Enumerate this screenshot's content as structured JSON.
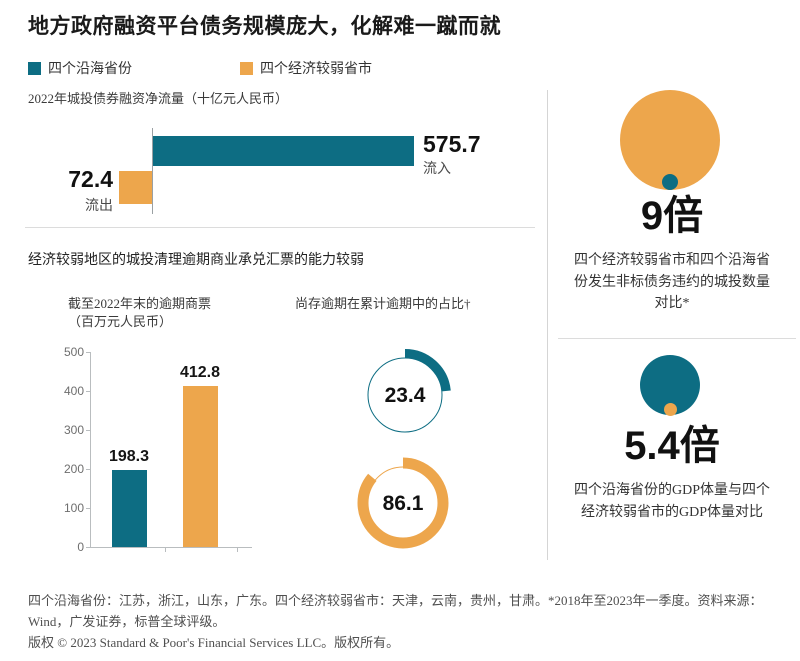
{
  "title": "地方政府融资平台债务规模庞大，化解难一蹴而就",
  "colors": {
    "teal": "#0d6d83",
    "orange": "#eda64c"
  },
  "legend": {
    "items": [
      {
        "label": "四个沿海省份",
        "color": "#0d6d83"
      },
      {
        "label": "四个经济较弱省市",
        "color": "#eda64c"
      }
    ]
  },
  "net_flow_chart": {
    "title": "2022年城投债券融资净流量（十亿元人民币）",
    "inflow": {
      "value": 575.7,
      "value_label": "575.7",
      "label": "流入"
    },
    "outflow": {
      "value": 72.4,
      "value_label": "72.4",
      "label": "流出"
    }
  },
  "section2": {
    "header": "经济较弱地区的城投清理逾期商业承兑汇票的能力较弱",
    "bar_chart": {
      "title_line1": "截至2022年末的逾期商票",
      "title_line2": "（百万元人民币）",
      "y_ticks": [
        "500",
        "400",
        "300",
        "200",
        "100",
        "0"
      ],
      "bars": [
        {
          "name": "四个沿海省份",
          "value": 198.3,
          "label": "198.3",
          "color": "#0d6d83"
        },
        {
          "name": "四个经济较弱省市",
          "value": 412.8,
          "label": "412.8",
          "color": "#eda64c"
        }
      ]
    },
    "donut_chart": {
      "title": "尚存逾期在累计逾期中的占比†",
      "donuts": [
        {
          "name": "四个沿海省份",
          "value": 23.4,
          "label": "23.4",
          "color": "#0d6d83"
        },
        {
          "name": "四个经济较弱省市",
          "value": 86.1,
          "label": "86.1",
          "color": "#eda64c"
        }
      ]
    }
  },
  "right_panels": [
    {
      "figure": "9倍",
      "caption": "四个经济较弱省市和四个沿海省份发生非标债务违约的城投数量对比*"
    },
    {
      "figure": "5.4倍",
      "caption": "四个沿海省份的GDP体量与四个经济较弱省市的GDP体量对比"
    }
  ],
  "footnotes": {
    "sources": "四个沿海省份：江苏，浙江，山东，广东。四个经济较弱省市：天津，云南，贵州，甘肃。*2018年至2023年一季度。资料来源：Wind，广发证券，标普全球评级。",
    "copyright": "版权 © 2023 Standard & Poor's Financial Services LLC。版权所有。"
  },
  "chart_data": [
    {
      "type": "bar",
      "orientation": "horizontal",
      "title": "2022年城投债券融资净流量（十亿元人民币）",
      "categories": [
        "流入（四个沿海省份）",
        "流出（四个经济较弱省市）"
      ],
      "values": [
        575.7,
        72.4
      ],
      "colors": [
        "#0d6d83",
        "#eda64c"
      ],
      "grid": false,
      "legend_position": "none"
    },
    {
      "type": "bar",
      "title": "截至2022年末的逾期商票（百万元人民币）",
      "categories": [
        "四个沿海省份",
        "四个经济较弱省市"
      ],
      "values": [
        198.3,
        412.8
      ],
      "colors": [
        "#0d6d83",
        "#eda64c"
      ],
      "ylim": [
        0,
        500
      ],
      "yticks": [
        0,
        100,
        200,
        300,
        400,
        500
      ],
      "grid": false
    },
    {
      "type": "pie",
      "subtype": "donut-gauges",
      "title": "尚存逾期在累计逾期中的占比†",
      "categories": [
        "四个沿海省份",
        "四个经济较弱省市"
      ],
      "values": [
        23.4,
        86.1
      ],
      "unit": "%",
      "colors": [
        "#0d6d83",
        "#eda64c"
      ]
    },
    {
      "type": "other",
      "subtype": "ratio-circles",
      "items": [
        {
          "ratio": "9倍",
          "caption": "四个经济较弱省市和四个沿海省份发生非标债务违约的城投数量对比*"
        },
        {
          "ratio": "5.4倍",
          "caption": "四个沿海省份的GDP体量与四个经济较弱省市的GDP体量对比"
        }
      ]
    }
  ]
}
